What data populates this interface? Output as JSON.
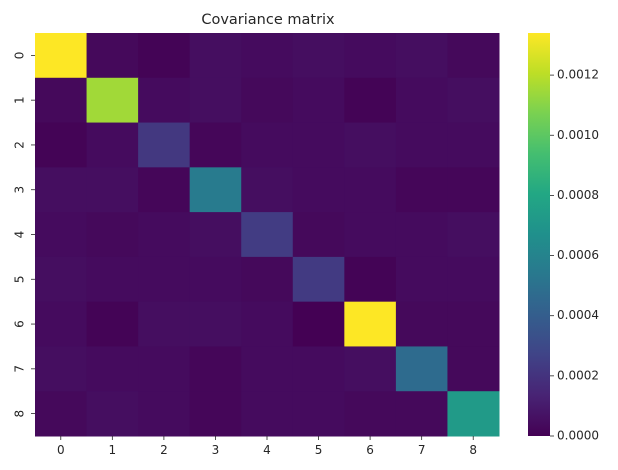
{
  "chart_data": {
    "type": "heatmap",
    "title": "Covariance matrix",
    "xlabel": "",
    "ylabel": "",
    "x_categories": [
      "0",
      "1",
      "2",
      "3",
      "4",
      "5",
      "6",
      "7",
      "8"
    ],
    "y_categories": [
      "0",
      "1",
      "2",
      "3",
      "4",
      "5",
      "6",
      "7",
      "8"
    ],
    "values": [
      [
        0.00134,
        3e-05,
        1e-05,
        5e-05,
        4e-05,
        5e-05,
        4e-05,
        5e-05,
        3e-05
      ],
      [
        3e-05,
        0.00115,
        4e-05,
        5e-05,
        3e-05,
        4e-05,
        1e-05,
        4e-05,
        5e-05
      ],
      [
        1e-05,
        4e-05,
        0.00022,
        2e-05,
        4e-05,
        4e-05,
        5e-05,
        4e-05,
        4e-05
      ],
      [
        5e-05,
        5e-05,
        2e-05,
        0.00055,
        5e-05,
        4e-05,
        4e-05,
        2e-05,
        2e-05
      ],
      [
        4e-05,
        3e-05,
        4e-05,
        5e-05,
        0.00024,
        3e-05,
        4e-05,
        4e-05,
        5e-05
      ],
      [
        5e-05,
        4e-05,
        4e-05,
        4e-05,
        3e-05,
        0.00023,
        1e-05,
        4e-05,
        4e-05
      ],
      [
        4e-05,
        1e-05,
        5e-05,
        5e-05,
        4e-05,
        0.0,
        0.00134,
        3e-05,
        3e-05
      ],
      [
        5e-05,
        4e-05,
        4e-05,
        2e-05,
        4e-05,
        4e-05,
        5e-05,
        0.00047,
        3e-05
      ],
      [
        3e-05,
        5e-05,
        4e-05,
        2e-05,
        4e-05,
        4e-05,
        3e-05,
        3e-05,
        0.00073
      ]
    ],
    "colormap": "viridis",
    "vmin": 0.0,
    "vmax": 0.00134,
    "colorbar_ticks": [
      "0.0000",
      "0.0002",
      "0.0004",
      "0.0006",
      "0.0008",
      "0.0010",
      "0.0012"
    ],
    "colorbar_tick_values": [
      0.0,
      0.0002,
      0.0004,
      0.0006,
      0.0008,
      0.001,
      0.0012
    ]
  }
}
